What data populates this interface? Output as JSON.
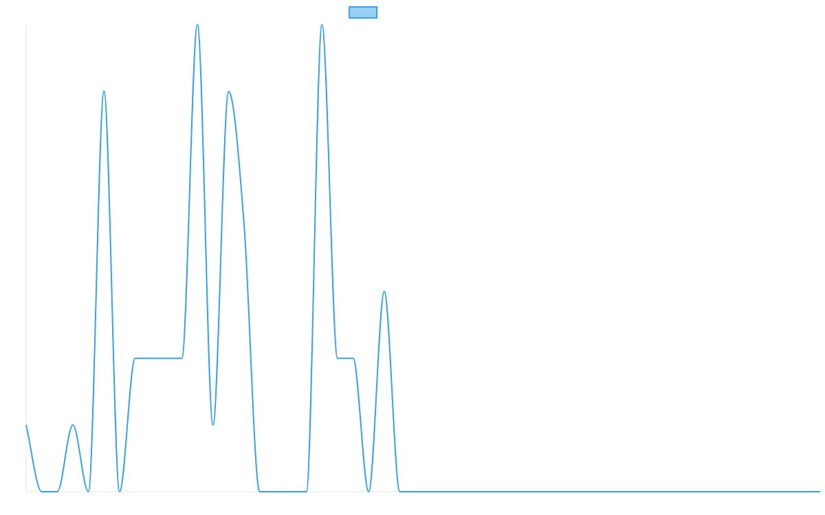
{
  "chart_data": {
    "type": "line",
    "title": "",
    "xlabel": "",
    "ylabel": "",
    "ylim": [
      0,
      7
    ],
    "x": [
      0,
      1,
      2,
      3,
      4,
      5,
      6,
      7,
      8,
      9,
      10,
      11,
      12,
      13,
      14,
      15,
      16,
      17,
      18,
      19,
      20,
      21,
      22,
      23,
      24,
      25,
      26,
      27,
      28,
      29,
      30,
      31,
      32,
      33,
      34,
      35,
      36,
      37,
      38,
      39,
      40,
      41,
      42,
      43,
      44,
      45,
      46,
      47,
      48,
      49,
      50,
      51
    ],
    "series": [
      {
        "name": "",
        "values": [
          1,
          0,
          0,
          1,
          0,
          6,
          0,
          2,
          2,
          2,
          2,
          7,
          1,
          6,
          4,
          0,
          0,
          0,
          0,
          7,
          2,
          2,
          0,
          3,
          0,
          0,
          0,
          0,
          0,
          0,
          0,
          0,
          0,
          0,
          0,
          0,
          0,
          0,
          0,
          0,
          0,
          0,
          0,
          0,
          0,
          0,
          0,
          0,
          0,
          0,
          0,
          0
        ]
      }
    ],
    "grid": false,
    "legend": "top-center"
  },
  "colors": {
    "line": "#36a2eb",
    "legend_fill": "#9ad0f5",
    "axis": "#e5e5e5"
  }
}
